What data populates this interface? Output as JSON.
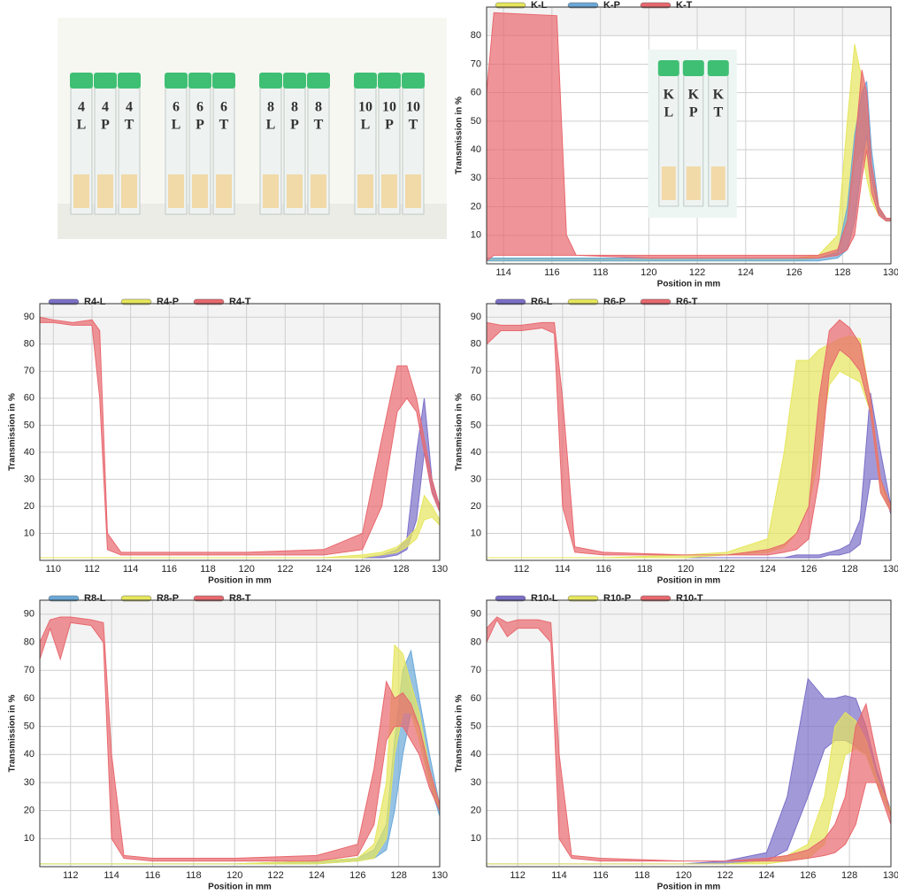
{
  "photo": {
    "tubes": [
      [
        "4",
        "L"
      ],
      [
        "4",
        "P"
      ],
      [
        "4",
        "T"
      ],
      [
        "6",
        "L"
      ],
      [
        "6",
        "P"
      ],
      [
        "6",
        "T"
      ],
      [
        "8",
        "L"
      ],
      [
        "8",
        "P"
      ],
      [
        "8",
        "T"
      ],
      [
        "10",
        "L"
      ],
      [
        "10",
        "P"
      ],
      [
        "10",
        "T"
      ]
    ]
  },
  "chart_data": [
    {
      "type": "band",
      "xlabel": "Position in mm",
      "ylabel": "Transmission in %",
      "inset_tubes": [
        [
          "K",
          "L"
        ],
        [
          "K",
          "P"
        ],
        [
          "K",
          "T"
        ]
      ],
      "x": [
        113.3,
        113.6,
        116.2,
        116.6,
        117,
        120,
        124,
        126,
        127,
        127.8,
        128.2,
        128.5,
        128.8,
        129,
        129.2,
        129.5,
        129.8,
        130
      ],
      "xlim": [
        113.3,
        130
      ],
      "xticks": [
        114,
        116,
        118,
        120,
        122,
        124,
        126,
        128,
        130
      ],
      "ylim": [
        0,
        90
      ],
      "yticks": [
        10,
        20,
        30,
        40,
        50,
        60,
        70,
        80
      ],
      "grid": true,
      "series": [
        {
          "name": "K-L",
          "color": "#e6e65c",
          "upper": [
            2,
            2,
            2,
            2,
            2,
            2,
            2,
            2,
            3,
            10,
            50,
            77,
            65,
            50,
            30,
            20,
            16,
            16
          ],
          "lower": [
            1,
            1,
            1,
            1,
            1,
            1,
            1,
            1,
            2,
            4,
            15,
            35,
            40,
            30,
            22,
            17,
            15,
            15
          ]
        },
        {
          "name": "K-P",
          "color": "#6aa8d8",
          "upper": [
            2,
            2,
            2,
            2,
            2,
            2,
            2,
            2,
            2,
            4,
            20,
            45,
            60,
            64,
            40,
            20,
            16,
            16
          ],
          "lower": [
            1,
            1,
            1,
            1,
            1,
            1,
            1,
            1,
            1,
            2,
            5,
            15,
            35,
            45,
            30,
            18,
            15,
            15
          ]
        },
        {
          "name": "K-T",
          "color": "#e8686e",
          "upper": [
            60,
            88,
            87,
            10,
            3,
            3,
            3,
            3,
            3,
            5,
            15,
            40,
            68,
            60,
            35,
            20,
            16,
            16
          ],
          "lower": [
            1,
            3,
            3,
            3,
            3,
            2,
            2,
            2,
            2,
            3,
            5,
            10,
            30,
            40,
            25,
            17,
            15,
            15
          ]
        }
      ]
    },
    {
      "type": "band",
      "xlabel": "Position in mm",
      "ylabel": "Transmission in %",
      "x": [
        109.3,
        110,
        111,
        112,
        112.4,
        112.8,
        113.5,
        116,
        120,
        124,
        126,
        127,
        127.8,
        128.3,
        128.8,
        129.2,
        129.6,
        130
      ],
      "xlim": [
        109.3,
        130
      ],
      "xticks": [
        110,
        112,
        114,
        116,
        118,
        120,
        122,
        124,
        126,
        128,
        130
      ],
      "ylim": [
        0,
        95
      ],
      "yticks": [
        10,
        20,
        30,
        40,
        50,
        60,
        70,
        80,
        90
      ],
      "grid": true,
      "series": [
        {
          "name": "R4-L",
          "color": "#7b6fc8",
          "upper": [
            1,
            1,
            1,
            1,
            1,
            1,
            1,
            1,
            1,
            1,
            1,
            2,
            4,
            8,
            40,
            60,
            30,
            20
          ],
          "lower": [
            1,
            1,
            1,
            1,
            1,
            1,
            1,
            1,
            1,
            1,
            1,
            1,
            2,
            4,
            15,
            40,
            25,
            18
          ]
        },
        {
          "name": "R4-P",
          "color": "#e6e65c",
          "upper": [
            1,
            1,
            1,
            1,
            1,
            1,
            1,
            1,
            1,
            1,
            2,
            3,
            5,
            8,
            12,
            24,
            20,
            15
          ],
          "lower": [
            1,
            1,
            1,
            1,
            1,
            1,
            1,
            1,
            1,
            1,
            1,
            2,
            3,
            5,
            8,
            15,
            16,
            13
          ]
        },
        {
          "name": "R4-T",
          "color": "#e8686e",
          "upper": [
            90,
            89,
            88,
            89,
            85,
            10,
            3,
            3,
            3,
            4,
            10,
            45,
            72,
            72,
            60,
            45,
            30,
            20
          ],
          "lower": [
            88,
            88,
            87,
            87,
            60,
            4,
            2,
            2,
            2,
            2,
            4,
            20,
            55,
            60,
            55,
            40,
            25,
            18
          ]
        }
      ]
    },
    {
      "type": "band",
      "xlabel": "Position in mm",
      "ylabel": "Transmission in %",
      "x": [
        110.3,
        111,
        112,
        113,
        113.6,
        114,
        114.6,
        116,
        120,
        122,
        124,
        124.8,
        125.4,
        126,
        126.5,
        127,
        127.5,
        128,
        128.5,
        129,
        129.5,
        130
      ],
      "xlim": [
        110.3,
        130
      ],
      "xticks": [
        112,
        114,
        116,
        118,
        120,
        122,
        124,
        126,
        128,
        130
      ],
      "ylim": [
        0,
        95
      ],
      "yticks": [
        10,
        20,
        30,
        40,
        50,
        60,
        70,
        80,
        90
      ],
      "grid": true,
      "series": [
        {
          "name": "R6-L",
          "color": "#7b6fc8",
          "upper": [
            1,
            1,
            1,
            1,
            1,
            1,
            1,
            1,
            1,
            1,
            1,
            1,
            2,
            2,
            2,
            3,
            4,
            6,
            15,
            62,
            40,
            20
          ],
          "lower": [
            1,
            1,
            1,
            1,
            1,
            1,
            1,
            1,
            1,
            1,
            1,
            1,
            1,
            1,
            1,
            2,
            2,
            3,
            6,
            30,
            30,
            17
          ]
        },
        {
          "name": "R6-P",
          "color": "#e6e65c",
          "upper": [
            1,
            1,
            1,
            1,
            1,
            1,
            1,
            1,
            2,
            3,
            8,
            40,
            74,
            74,
            78,
            80,
            82,
            83,
            82,
            60,
            30,
            20
          ],
          "lower": [
            1,
            1,
            1,
            1,
            1,
            1,
            1,
            1,
            1,
            2,
            3,
            5,
            10,
            20,
            40,
            65,
            70,
            68,
            66,
            55,
            25,
            18
          ]
        },
        {
          "name": "R6-T",
          "color": "#e8686e",
          "upper": [
            88,
            87,
            87,
            88,
            88,
            60,
            5,
            3,
            2,
            2,
            4,
            6,
            10,
            20,
            60,
            85,
            89,
            86,
            80,
            60,
            30,
            20
          ],
          "lower": [
            80,
            85,
            85,
            86,
            84,
            20,
            3,
            2,
            2,
            2,
            2,
            3,
            4,
            8,
            30,
            70,
            78,
            75,
            70,
            55,
            25,
            18
          ]
        }
      ]
    },
    {
      "type": "band",
      "xlabel": "Position in mm",
      "ylabel": "Transmission in %",
      "x": [
        110.5,
        111,
        111.5,
        112,
        113,
        113.6,
        114,
        114.6,
        116,
        120,
        124,
        126,
        126.8,
        127.4,
        127.8,
        128.2,
        128.6,
        129,
        129.5,
        130
      ],
      "xlim": [
        110.5,
        130
      ],
      "xticks": [
        112,
        114,
        116,
        118,
        120,
        122,
        124,
        126,
        128,
        130
      ],
      "ylim": [
        0,
        95
      ],
      "yticks": [
        10,
        20,
        30,
        40,
        50,
        60,
        70,
        80,
        90
      ],
      "grid": true,
      "series": [
        {
          "name": "R8-L",
          "color": "#6aa8d8",
          "upper": [
            1,
            1,
            1,
            1,
            1,
            1,
            1,
            1,
            1,
            1,
            2,
            3,
            6,
            15,
            45,
            70,
            77,
            60,
            40,
            22
          ],
          "lower": [
            1,
            1,
            1,
            1,
            1,
            1,
            1,
            1,
            1,
            1,
            1,
            2,
            3,
            6,
            20,
            40,
            55,
            50,
            30,
            18
          ]
        },
        {
          "name": "R8-P",
          "color": "#e6e65c",
          "upper": [
            1,
            1,
            1,
            1,
            1,
            1,
            1,
            1,
            1,
            1,
            2,
            3,
            8,
            30,
            79,
            76,
            65,
            55,
            35,
            22
          ],
          "lower": [
            1,
            1,
            1,
            1,
            1,
            1,
            1,
            1,
            1,
            1,
            1,
            2,
            3,
            10,
            40,
            55,
            55,
            45,
            30,
            20
          ]
        },
        {
          "name": "R8-T",
          "color": "#e8686e",
          "upper": [
            80,
            88,
            89,
            89,
            88,
            87,
            40,
            4,
            3,
            3,
            4,
            8,
            35,
            66,
            60,
            62,
            58,
            50,
            35,
            22
          ],
          "lower": [
            74,
            85,
            74,
            87,
            86,
            80,
            10,
            3,
            2,
            2,
            2,
            4,
            15,
            45,
            50,
            50,
            45,
            40,
            28,
            20
          ]
        }
      ]
    },
    {
      "type": "band",
      "xlabel": "Position in mm",
      "ylabel": "Transmission in %",
      "x": [
        110.5,
        111,
        111.5,
        112,
        113,
        113.6,
        114,
        114.6,
        116,
        120,
        122,
        124,
        125,
        126,
        126.8,
        127.3,
        127.8,
        128.3,
        128.8,
        129.3,
        130
      ],
      "xlim": [
        110.5,
        130
      ],
      "xticks": [
        112,
        114,
        116,
        118,
        120,
        122,
        124,
        126,
        128,
        130
      ],
      "ylim": [
        0,
        95
      ],
      "yticks": [
        10,
        20,
        30,
        40,
        50,
        60,
        70,
        80,
        90
      ],
      "grid": true,
      "series": [
        {
          "name": "R10-L",
          "color": "#7b6fc8",
          "upper": [
            1,
            1,
            1,
            1,
            1,
            1,
            1,
            1,
            1,
            1,
            2,
            5,
            25,
            67,
            60,
            60,
            61,
            60,
            50,
            35,
            20
          ],
          "lower": [
            1,
            1,
            1,
            1,
            1,
            1,
            1,
            1,
            1,
            1,
            1,
            2,
            6,
            25,
            42,
            45,
            45,
            43,
            40,
            30,
            18
          ]
        },
        {
          "name": "R10-P",
          "color": "#e6e65c",
          "upper": [
            1,
            1,
            1,
            1,
            1,
            1,
            1,
            1,
            1,
            1,
            1,
            2,
            4,
            8,
            25,
            50,
            55,
            52,
            45,
            32,
            20
          ],
          "lower": [
            1,
            1,
            1,
            1,
            1,
            1,
            1,
            1,
            1,
            1,
            1,
            1,
            2,
            3,
            8,
            25,
            40,
            42,
            40,
            30,
            18
          ]
        },
        {
          "name": "R10-T",
          "color": "#e8686e",
          "upper": [
            85,
            89,
            87,
            88,
            88,
            87,
            40,
            4,
            3,
            2,
            2,
            3,
            4,
            6,
            10,
            15,
            25,
            50,
            58,
            40,
            18
          ],
          "lower": [
            80,
            88,
            82,
            85,
            85,
            80,
            10,
            3,
            2,
            2,
            2,
            2,
            2,
            3,
            4,
            5,
            8,
            15,
            30,
            30,
            15
          ]
        }
      ]
    }
  ]
}
